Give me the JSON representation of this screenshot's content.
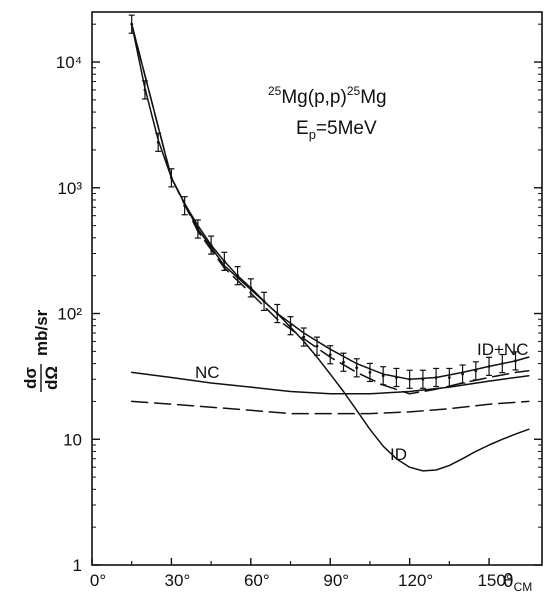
{
  "chart_data": {
    "type": "line",
    "title": "",
    "reaction": {
      "pre": "25",
      "core": "Mg(p,p)",
      "post": "25",
      "tail": "Mg"
    },
    "energy": {
      "base": "E",
      "sub": "p",
      "rest": "=5MeV"
    },
    "ylabel": {
      "num": "dσ",
      "den": "dΩ",
      "unit": "mb/sr"
    },
    "xlabel": {
      "base": "θ",
      "sub": "CM"
    },
    "x_axis": {
      "lim": [
        0,
        170
      ],
      "ticks": [
        0,
        30,
        60,
        90,
        120,
        150
      ],
      "tick_labels": [
        "0°",
        "30°",
        "60°",
        "90°",
        "120°",
        "150°"
      ]
    },
    "y_axis": {
      "scale": "log",
      "lim": [
        1,
        25000
      ],
      "ticks": [
        1,
        10,
        100,
        1000,
        10000
      ],
      "tick_labels": [
        "1",
        "10",
        "10²",
        "10³",
        "10⁴"
      ]
    },
    "grid": false,
    "series": [
      {
        "name": "ID",
        "style": "solid",
        "x": [
          15,
          20,
          25,
          30,
          35,
          40,
          45,
          50,
          55,
          60,
          65,
          70,
          75,
          80,
          85,
          90,
          95,
          100,
          105,
          110,
          115,
          120,
          125,
          130,
          135,
          140,
          145,
          150,
          155,
          160,
          165
        ],
        "y": [
          20000,
          6200,
          2400,
          1200,
          750,
          500,
          350,
          260,
          200,
          160,
          125,
          100,
          78,
          60,
          45,
          33,
          24,
          17,
          12,
          8.8,
          7,
          6,
          5.6,
          5.7,
          6.2,
          7,
          8,
          9,
          10,
          11,
          12
        ]
      },
      {
        "name": "NC",
        "style": "solid",
        "x": [
          15,
          30,
          45,
          60,
          75,
          90,
          105,
          120,
          135,
          150,
          165
        ],
        "y": [
          34,
          31,
          28,
          26,
          24,
          23,
          23,
          24,
          26,
          29,
          32
        ]
      },
      {
        "name": "",
        "style": "dashed",
        "x": [
          15,
          30,
          45,
          60,
          75,
          90,
          105,
          120,
          135,
          150,
          165
        ],
        "y": [
          20,
          19,
          18,
          17,
          16,
          16,
          16,
          16.5,
          17.5,
          19,
          20
        ]
      },
      {
        "name": "",
        "style": "dashed",
        "x": [
          15,
          30,
          40,
          50,
          60,
          70,
          80,
          90,
          100,
          110,
          120,
          130,
          140,
          150,
          160,
          165
        ],
        "y": [
          20000,
          1200,
          450,
          230,
          145,
          90,
          63,
          45,
          34,
          27,
          23,
          25,
          28,
          31,
          34,
          35
        ]
      },
      {
        "name": "ID+NC",
        "style": "solid",
        "x": [
          15,
          30,
          40,
          50,
          60,
          70,
          80,
          90,
          100,
          110,
          120,
          130,
          140,
          150,
          160,
          165
        ],
        "y": [
          20000,
          1200,
          470,
          240,
          155,
          100,
          70,
          52,
          40,
          33,
          30,
          31,
          34,
          38,
          42,
          45
        ]
      }
    ],
    "experimental_points": {
      "x": [
        15,
        20,
        25,
        30,
        35,
        40,
        45,
        50,
        55,
        60,
        65,
        70,
        75,
        80,
        85,
        90,
        95,
        100,
        105,
        110,
        115,
        120,
        125,
        130,
        135,
        140,
        145,
        150,
        155,
        160
      ],
      "y": [
        20000,
        6000,
        2300,
        1200,
        720,
        470,
        350,
        260,
        200,
        160,
        125,
        100,
        80,
        65,
        55,
        47,
        41,
        37,
        34,
        32,
        31,
        30,
        30,
        31,
        31,
        33,
        35,
        38,
        40,
        42
      ]
    },
    "curve_labels": [
      "NC",
      "ID",
      "ID+NC"
    ]
  }
}
